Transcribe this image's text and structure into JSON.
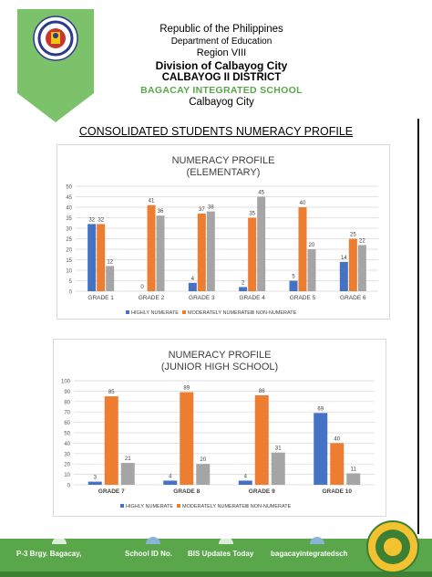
{
  "header": {
    "line1": "Republic of the Philippines",
    "line2": "Department of Education",
    "line3": "Region VIII",
    "line4": "Division of Calbayog City",
    "line5": "CALBAYOG II DISTRICT",
    "line6": "BAGACAY INTEGRATED SCHOOL",
    "line7": "Calbayog City"
  },
  "doc_title": "CONSOLIDATED STUDENTS NUMERACY PROFILE",
  "colors": {
    "highly": "#4472c4",
    "moderately": "#ed7d31",
    "non": "#a5a5a5",
    "green": "#5aa64a"
  },
  "chart_data": [
    {
      "type": "bar",
      "title": "NUMERACY PROFILE",
      "subtitle": "(ELEMENTARY)",
      "categories": [
        "GRADE 1",
        "GRADE 2",
        "GRADE 3",
        "GRADE 4",
        "GRADE 5",
        "GRADE 6"
      ],
      "series": [
        {
          "name": "HIGHLY NUMERATE",
          "values": [
            32,
            0,
            4,
            2,
            5,
            14
          ]
        },
        {
          "name": "MODERATELY NUMERATE",
          "values": [
            32,
            41,
            37,
            35,
            40,
            25
          ]
        },
        {
          "name": "NON-NUMERATE",
          "values": [
            12,
            36,
            38,
            45,
            20,
            22
          ]
        }
      ],
      "ylim": [
        0,
        50
      ],
      "yticks": [
        0,
        5,
        10,
        15,
        20,
        25,
        30,
        35,
        40,
        45,
        50
      ],
      "grid": true,
      "legend": "bottom"
    },
    {
      "type": "bar",
      "title": "NUMERACY PROFILE",
      "subtitle": "(JUNIOR HIGH SCHOOL)",
      "categories": [
        "GRADE 7",
        "GRADE 8",
        "GRADE 9",
        "GRADE 10"
      ],
      "series": [
        {
          "name": "HIGHLY NUMERATE",
          "values": [
            3,
            4,
            4,
            69
          ]
        },
        {
          "name": "MODERATELY NUMERATE",
          "values": [
            85,
            89,
            86,
            40
          ]
        },
        {
          "name": "NON-NUMERATE",
          "values": [
            21,
            20,
            31,
            11
          ]
        }
      ],
      "ylim": [
        0,
        100
      ],
      "yticks": [
        0,
        10,
        20,
        30,
        40,
        50,
        60,
        70,
        80,
        90,
        100
      ],
      "grid": true,
      "legend": "bottom"
    }
  ],
  "footer": {
    "address": "P-3 Brgy. Bagacay,",
    "school_id": "School ID No.",
    "updates": "BIS Updates Today",
    "email": "bagacayintegratedsch"
  }
}
